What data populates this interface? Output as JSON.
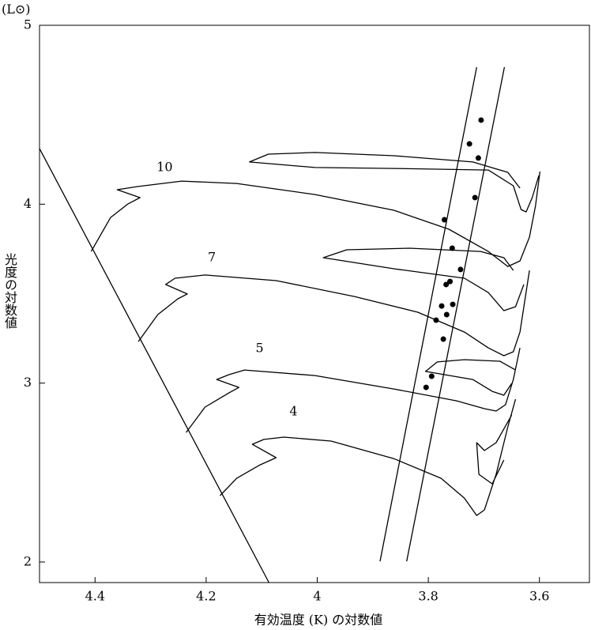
{
  "chart_data": {
    "type": "line",
    "x_label": "有効温度 (K) の対数値",
    "y_label": "光度の対数値",
    "y_unit": "(L⊙)",
    "xlim": [
      4.5,
      3.51
    ],
    "ylim": [
      1.885,
      5
    ],
    "xticks": [
      4.4,
      4.2,
      4,
      3.8,
      3.6
    ],
    "yticks": [
      2,
      3,
      4,
      5
    ],
    "series": [
      {
        "name": "10",
        "type": "line",
        "color": "#000000",
        "x": [
          4.407,
          4.372,
          4.341,
          4.319,
          4.36,
          4.322,
          4.244,
          4.145,
          4.004,
          3.862,
          3.763,
          3.692,
          3.657,
          3.635,
          3.618,
          3.607,
          3.599,
          null,
          3.635,
          3.657,
          3.72,
          3.862,
          4.004,
          4.088,
          4.122,
          4.004,
          3.862,
          3.692,
          3.647,
          3.633,
          3.624,
          3.613,
          3.601
        ],
        "values": [
          3.736,
          3.926,
          4.001,
          4.037,
          4.081,
          4.099,
          4.129,
          4.116,
          4.054,
          3.966,
          3.86,
          3.736,
          3.652,
          3.683,
          3.816,
          3.992,
          4.183,
          null,
          4.09,
          4.178,
          4.236,
          4.271,
          4.289,
          4.28,
          4.236,
          4.205,
          4.2,
          4.191,
          4.103,
          3.97,
          3.957,
          4.037,
          4.16
        ]
      },
      {
        "name": "7",
        "type": "line",
        "color": "#000000",
        "x": [
          4.322,
          4.287,
          4.251,
          4.234,
          4.273,
          4.256,
          4.202,
          4.074,
          3.933,
          3.819,
          3.735,
          3.692,
          3.664,
          3.647,
          3.635,
          3.618,
          null,
          3.647,
          3.664,
          3.706,
          3.834,
          3.947,
          3.989,
          3.862,
          3.735,
          3.692,
          3.664,
          3.643,
          3.628
        ],
        "values": [
          3.232,
          3.383,
          3.471,
          3.498,
          3.551,
          3.586,
          3.604,
          3.573,
          3.484,
          3.396,
          3.285,
          3.197,
          3.153,
          3.175,
          3.285,
          3.63,
          null,
          3.63,
          3.701,
          3.736,
          3.754,
          3.745,
          3.701,
          3.639,
          3.586,
          3.506,
          3.405,
          3.427,
          3.551
        ]
      },
      {
        "name": "5",
        "type": "line",
        "color": "#000000",
        "x": [
          4.236,
          4.202,
          4.159,
          4.141,
          4.181,
          4.159,
          4.131,
          4.004,
          3.862,
          3.749,
          3.699,
          3.678,
          3.661,
          3.647,
          3.635,
          null,
          3.643,
          3.671,
          3.735,
          3.784,
          3.805,
          3.72,
          3.685,
          3.664,
          3.65
        ],
        "values": [
          2.724,
          2.866,
          2.945,
          2.976,
          3.02,
          3.047,
          3.073,
          3.042,
          2.967,
          2.901,
          2.857,
          2.844,
          2.879,
          3.02,
          3.197,
          null,
          3.073,
          3.122,
          3.131,
          3.118,
          3.065,
          3.02,
          2.954,
          2.932,
          2.998
        ]
      },
      {
        "name": "4",
        "type": "line",
        "color": "#000000",
        "x": [
          4.175,
          4.145,
          4.103,
          4.074,
          4.117,
          4.096,
          4.06,
          3.975,
          3.862,
          3.777,
          3.735,
          3.713,
          3.699,
          3.678,
          3.657,
          3.643,
          null,
          3.65,
          3.678,
          3.699,
          3.713,
          3.709,
          3.685,
          3.664
        ],
        "values": [
          2.371,
          2.468,
          2.543,
          2.583,
          2.658,
          2.685,
          2.698,
          2.676,
          2.578,
          2.468,
          2.357,
          2.26,
          2.291,
          2.49,
          2.755,
          2.91,
          null,
          2.821,
          2.667,
          2.623,
          2.667,
          2.49,
          2.437,
          2.57
        ]
      },
      {
        "type": "line",
        "color": "#000000",
        "x": [
          4.5,
          4.087
        ],
        "values": [
          4.311,
          1.885
        ]
      },
      {
        "type": "line",
        "color": "#000000",
        "x": [
          3.887,
          3.713
        ],
        "values": [
          2.004,
          4.766
        ]
      },
      {
        "type": "line",
        "color": "#000000",
        "x": [
          3.839,
          3.663
        ],
        "values": [
          2.004,
          4.766
        ]
      },
      {
        "type": "scatter",
        "color": "#000000",
        "x": [
          3.705,
          3.726,
          3.71,
          3.716,
          3.771,
          3.757,
          3.742,
          3.761,
          3.768,
          3.756,
          3.776,
          3.767,
          3.786,
          3.773,
          3.794,
          3.804
        ],
        "values": [
          4.47,
          4.337,
          4.258,
          4.037,
          3.913,
          3.754,
          3.635,
          3.568,
          3.551,
          3.44,
          3.431,
          3.383,
          3.352,
          3.246,
          3.038,
          2.976
        ]
      }
    ]
  }
}
